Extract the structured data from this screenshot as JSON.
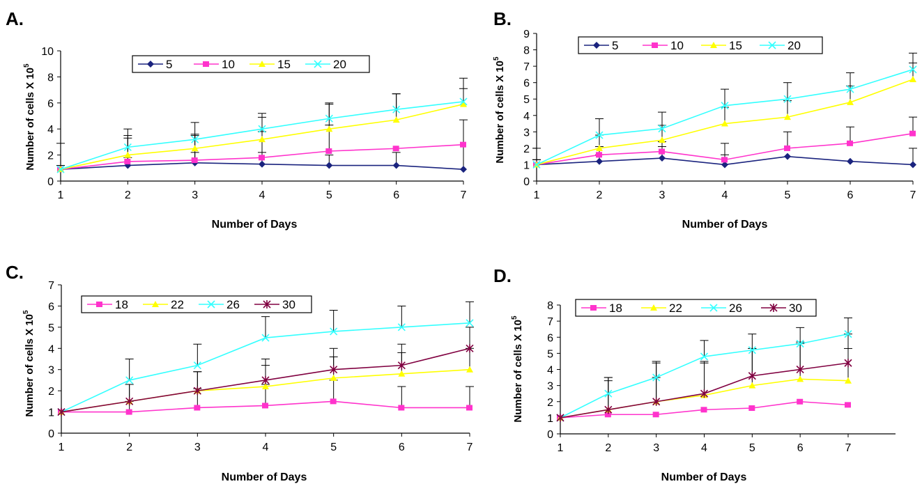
{
  "chart_data": [
    {
      "panel": "A.",
      "type": "line",
      "xlabel": "Number of Days",
      "ylabel": "Number of cells X 10",
      "ylabel_exp": "5",
      "x": [
        1,
        2,
        3,
        4,
        5,
        6,
        7
      ],
      "ylim": [
        0,
        10
      ],
      "yticks": [
        0,
        2,
        4,
        6,
        8,
        10
      ],
      "legend_position": "top-center",
      "series": [
        {
          "name": "5",
          "color": "#1a237e",
          "marker": "diamond",
          "values": [
            0.9,
            1.2,
            1.4,
            1.3,
            1.2,
            1.2,
            0.9
          ],
          "errors": [
            2.0,
            0.6,
            0.8,
            0.9,
            0.8,
            1.0,
            3.8
          ]
        },
        {
          "name": "10",
          "color": "#ff33cc",
          "marker": "square",
          "values": [
            0.9,
            1.5,
            1.6,
            1.8,
            2.3,
            2.5,
            2.8
          ],
          "errors": [
            0.3,
            1.8,
            1.9,
            2.0,
            2.0,
            0.0,
            0.0
          ]
        },
        {
          "name": "15",
          "color": "#ffff00",
          "marker": "triangle",
          "values": [
            0.9,
            2.0,
            2.5,
            3.2,
            4.0,
            4.7,
            5.9
          ],
          "errors": [
            0.3,
            1.5,
            1.1,
            1.7,
            1.9,
            2.0,
            1.2
          ]
        },
        {
          "name": "20",
          "color": "#33ffff",
          "marker": "x",
          "values": [
            0.9,
            2.6,
            3.2,
            4.0,
            4.8,
            5.5,
            6.1
          ],
          "errors": [
            0.3,
            1.4,
            1.3,
            1.2,
            1.2,
            1.2,
            1.8
          ]
        }
      ]
    },
    {
      "panel": "B.",
      "type": "line",
      "xlabel": "Number of Days",
      "ylabel": "Number of cells X 10",
      "ylabel_exp": "5",
      "x": [
        1,
        2,
        3,
        4,
        5,
        6,
        7
      ],
      "ylim": [
        0,
        9
      ],
      "yticks": [
        0,
        1,
        2,
        3,
        4,
        5,
        6,
        7,
        8,
        9
      ],
      "legend_position": "top-center",
      "series": [
        {
          "name": "5",
          "color": "#1a237e",
          "marker": "diamond",
          "values": [
            1.0,
            1.2,
            1.4,
            1.0,
            1.5,
            1.2,
            1.0
          ],
          "errors": [
            1.0,
            0.4,
            0.7,
            0.6,
            0.0,
            0.0,
            1.0
          ]
        },
        {
          "name": "10",
          "color": "#ff33cc",
          "marker": "square",
          "values": [
            1.0,
            1.6,
            1.8,
            1.3,
            2.0,
            2.3,
            2.9
          ],
          "errors": [
            0.3,
            0.5,
            0.6,
            1.0,
            1.0,
            1.0,
            1.0
          ]
        },
        {
          "name": "15",
          "color": "#ffff00",
          "marker": "triangle",
          "values": [
            1.0,
            2.0,
            2.5,
            3.5,
            3.9,
            4.8,
            6.2
          ],
          "errors": [
            0.3,
            0.8,
            0.9,
            1.0,
            1.0,
            1.0,
            1.0
          ]
        },
        {
          "name": "20",
          "color": "#33ffff",
          "marker": "x",
          "values": [
            1.0,
            2.8,
            3.2,
            4.6,
            5.0,
            5.6,
            6.8
          ],
          "errors": [
            0.3,
            1.0,
            1.0,
            1.0,
            1.0,
            1.0,
            1.0
          ]
        }
      ]
    },
    {
      "panel": "C.",
      "type": "line",
      "xlabel": "Number of  Days",
      "ylabel": "Number of cells X 10",
      "ylabel_exp": "5",
      "x": [
        1,
        2,
        3,
        4,
        5,
        6,
        7
      ],
      "ylim": [
        0,
        7
      ],
      "yticks": [
        0,
        1,
        2,
        3,
        4,
        5,
        6,
        7
      ],
      "legend_position": "top-left",
      "series": [
        {
          "name": "18",
          "color": "#ff33cc",
          "marker": "square",
          "values": [
            1.0,
            1.0,
            1.2,
            1.3,
            1.5,
            1.2,
            1.2
          ],
          "errors": [
            0.0,
            0.5,
            0.9,
            1.0,
            1.0,
            1.0,
            1.0
          ]
        },
        {
          "name": "22",
          "color": "#ffff00",
          "marker": "triangle",
          "values": [
            1.0,
            1.5,
            2.0,
            2.2,
            2.6,
            2.8,
            3.0
          ],
          "errors": [
            0.0,
            0.8,
            0.9,
            1.0,
            1.0,
            1.0,
            1.0
          ]
        },
        {
          "name": "26",
          "color": "#33ffff",
          "marker": "x",
          "values": [
            1.0,
            2.5,
            3.2,
            4.5,
            4.8,
            5.0,
            5.2
          ],
          "errors": [
            0.0,
            1.0,
            1.0,
            1.0,
            1.0,
            1.0,
            1.0
          ]
        },
        {
          "name": "30",
          "color": "#800040",
          "marker": "star",
          "values": [
            1.0,
            1.5,
            2.0,
            2.5,
            3.0,
            3.2,
            4.0
          ],
          "errors": [
            0.0,
            0.8,
            0.9,
            1.0,
            1.0,
            1.0,
            1.0
          ]
        }
      ]
    },
    {
      "panel": "D.",
      "type": "line",
      "xlabel": "Number of Days",
      "ylabel": "Number of cells X 10",
      "ylabel_exp": "5",
      "x": [
        1,
        2,
        3,
        4,
        5,
        6,
        7
      ],
      "xlim_extra": 9,
      "ylim": [
        0,
        8
      ],
      "yticks": [
        0,
        1,
        2,
        3,
        4,
        5,
        6,
        7,
        8
      ],
      "legend_position": "top-left",
      "series": [
        {
          "name": "18",
          "color": "#ff33cc",
          "marker": "square",
          "values": [
            1.0,
            1.2,
            1.2,
            1.5,
            1.6,
            2.0,
            1.8
          ],
          "errors": [
            0.0,
            0.0,
            0.0,
            0.0,
            0.0,
            0.0,
            0.0
          ]
        },
        {
          "name": "22",
          "color": "#ffff00",
          "marker": "triangle",
          "values": [
            1.0,
            1.5,
            2.0,
            2.4,
            3.0,
            3.4,
            3.3
          ],
          "errors": [
            0.0,
            2.0,
            2.4,
            2.0,
            2.3,
            2.2,
            2.0
          ]
        },
        {
          "name": "26",
          "color": "#33ffff",
          "marker": "x",
          "values": [
            1.0,
            2.5,
            3.5,
            4.8,
            5.2,
            5.6,
            6.2
          ],
          "errors": [
            0.0,
            1.0,
            1.0,
            1.0,
            1.0,
            1.0,
            1.0
          ]
        },
        {
          "name": "30",
          "color": "#800040",
          "marker": "star",
          "values": [
            1.0,
            1.5,
            2.0,
            2.5,
            3.6,
            4.0,
            4.4
          ],
          "errors": [
            0.0,
            1.8,
            1.5,
            2.0,
            1.7,
            1.7,
            1.8
          ]
        }
      ]
    }
  ]
}
